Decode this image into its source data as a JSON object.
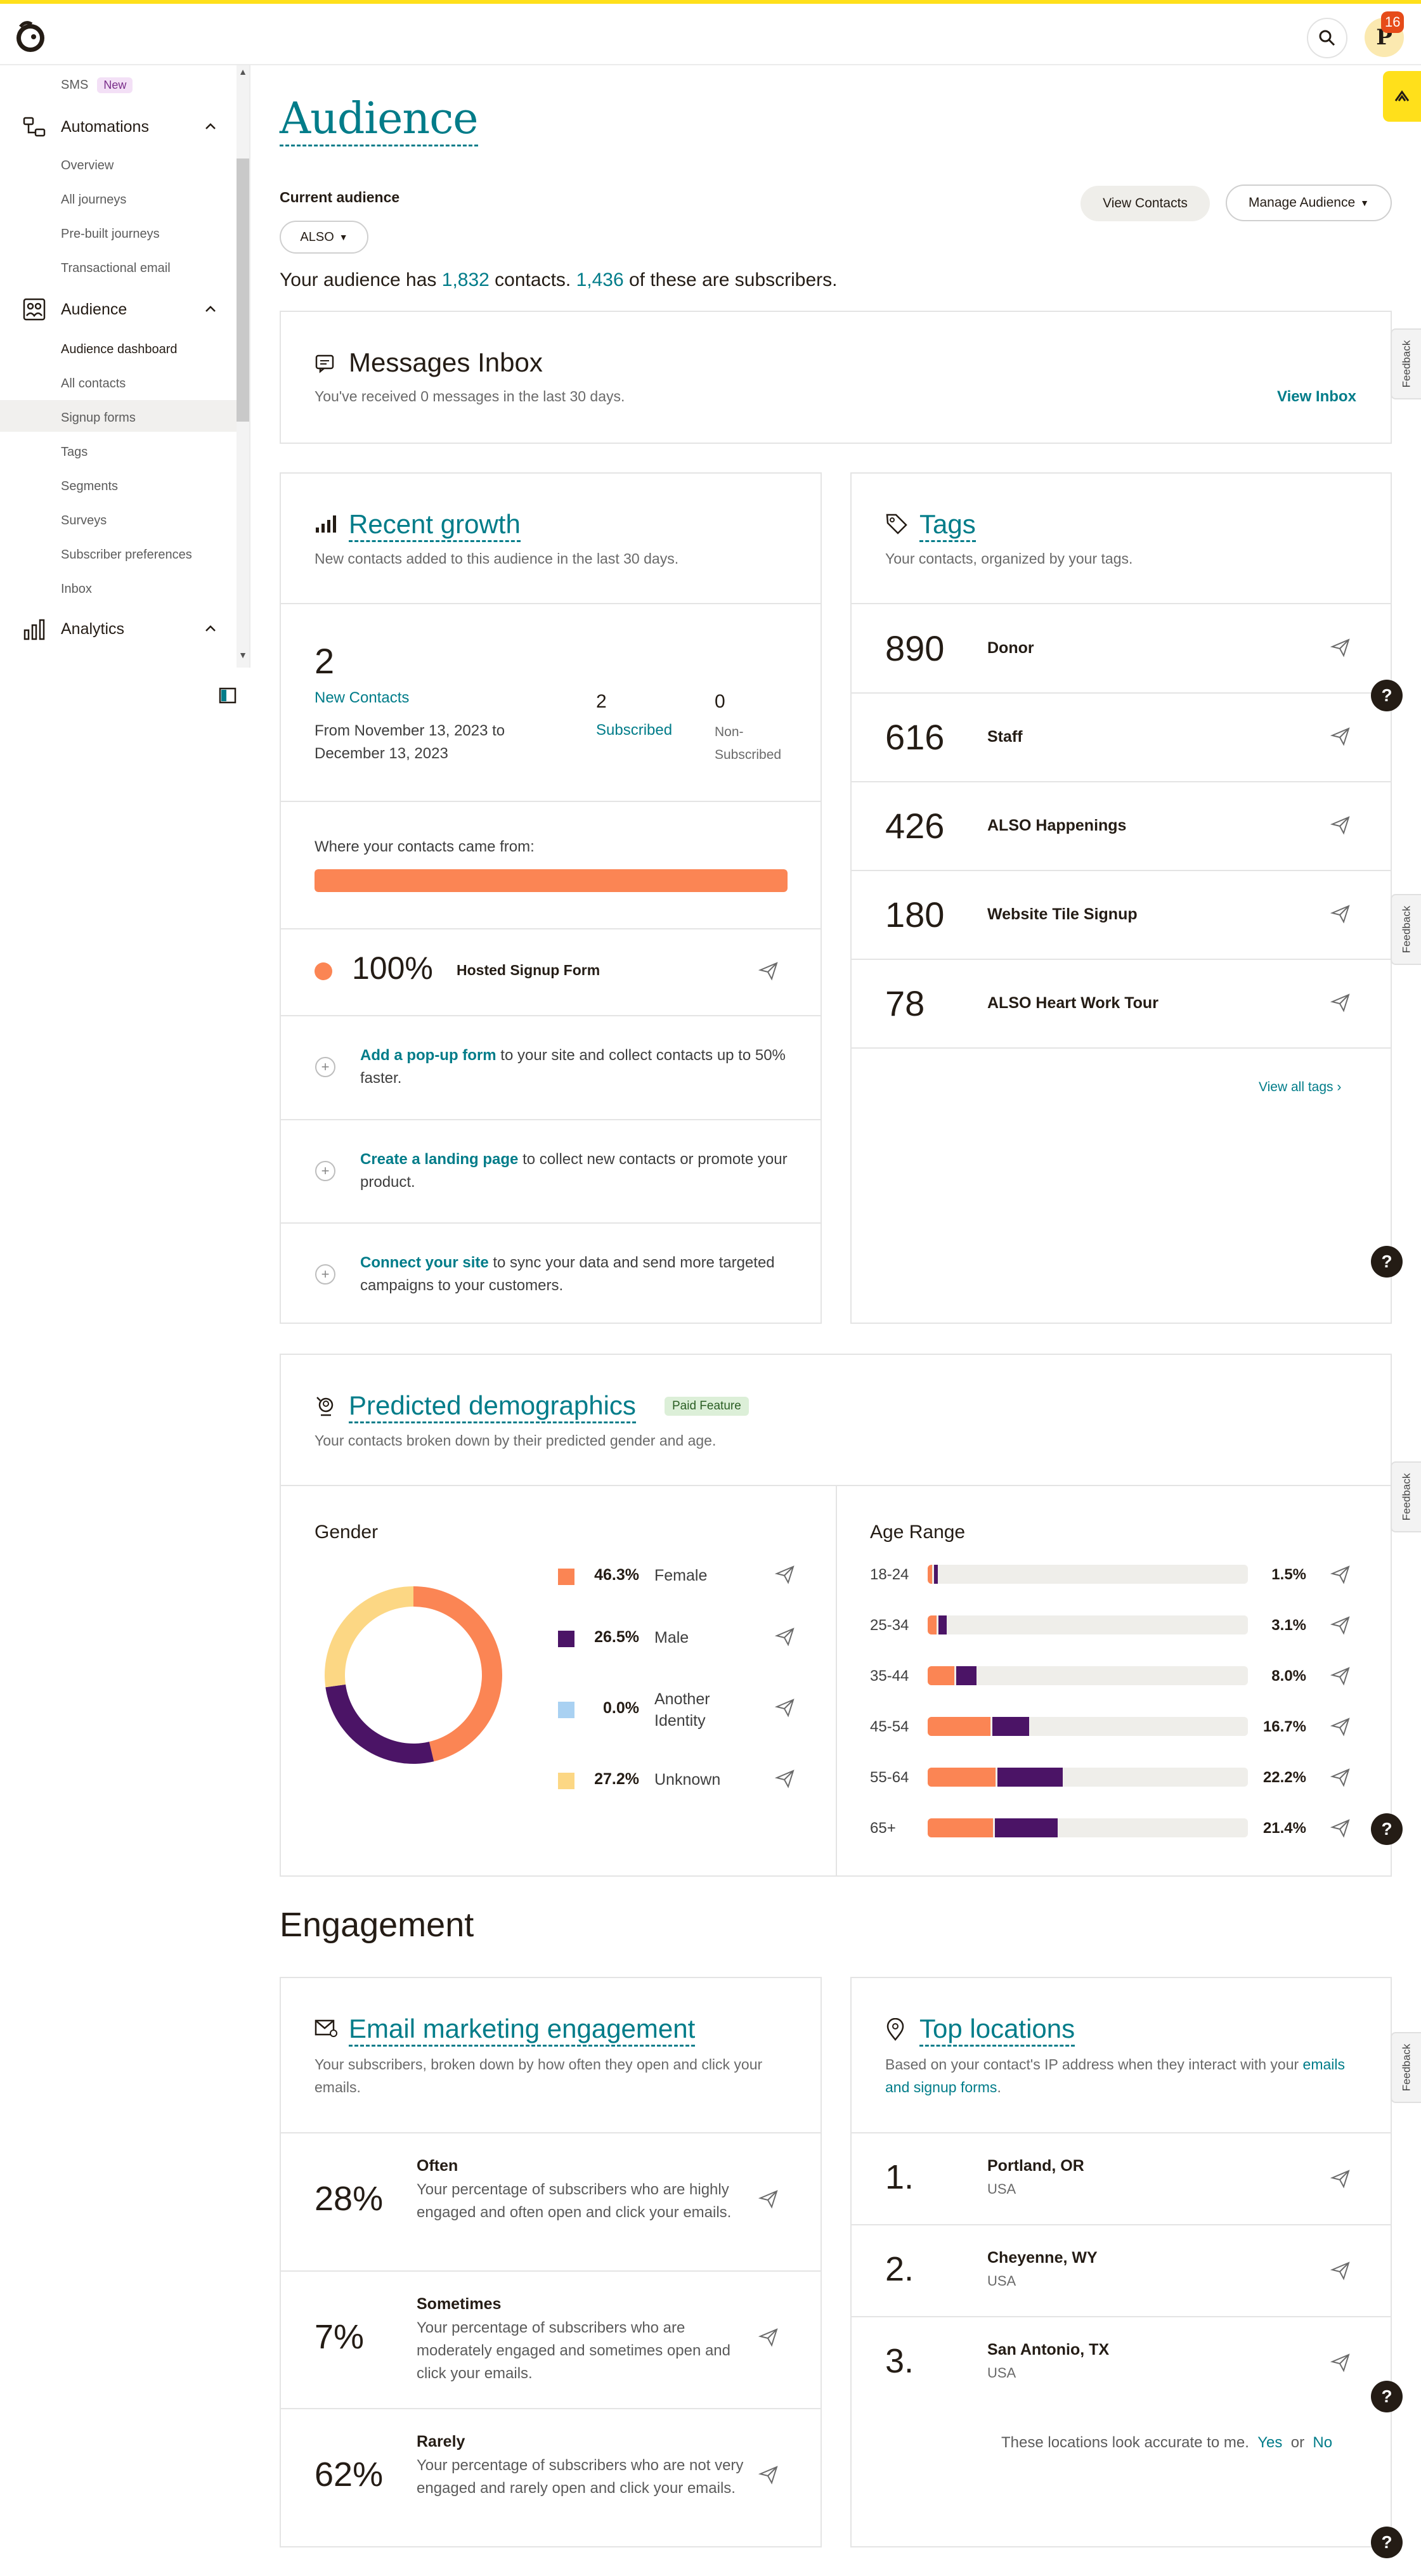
{
  "header": {
    "notification_count": "16",
    "avatar_letter": "P"
  },
  "sidebar": {
    "sms": {
      "label": "SMS",
      "badge": "New"
    },
    "automations": {
      "label": "Automations",
      "items": [
        "Overview",
        "All journeys",
        "Pre-built journeys",
        "Transactional email"
      ]
    },
    "audience": {
      "label": "Audience",
      "items": [
        "Audience dashboard",
        "All contacts",
        "Signup forms",
        "Tags",
        "Segments",
        "Surveys",
        "Subscriber preferences",
        "Inbox"
      ]
    },
    "analytics": {
      "label": "Analytics"
    }
  },
  "page": {
    "title": "Audience",
    "current_audience_label": "Current audience",
    "audience_selector": "ALSO",
    "summary": {
      "prefix": "Your audience has ",
      "contacts": "1,832",
      "middle": " contacts. ",
      "subscribers": "1,436",
      "suffix": " of these are subscribers."
    },
    "view_contacts": "View Contacts",
    "manage_audience": "Manage Audience"
  },
  "inbox": {
    "title": "Messages Inbox",
    "subtitle": "You've received 0 messages in the last 30 days.",
    "link": "View Inbox"
  },
  "growth": {
    "title": "Recent growth",
    "subtitle": "New contacts added to this audience in the last 30 days.",
    "new_count": "2",
    "new_label": "New Contacts",
    "range": "From November 13, 2023 to December 13, 2023",
    "subscribed_count": "2",
    "subscribed_label": "Subscribed",
    "non_count": "0",
    "non_label": "Non-Subscribed",
    "source_label": "Where your contacts came from:",
    "source_pct": "100%",
    "source_name": "Hosted Signup Form",
    "source_fraction": 1.0,
    "tips": [
      {
        "link": "Add a pop-up form",
        "text": " to your site and collect contacts up to 50% faster."
      },
      {
        "link": "Create a landing page",
        "text": " to collect new contacts or promote your product."
      },
      {
        "link": "Connect your site",
        "text": " to sync your data and send more targeted campaigns to your customers."
      }
    ]
  },
  "tags": {
    "title": "Tags",
    "subtitle": "Your contacts, organized by your tags.",
    "items": [
      {
        "count": "890",
        "name": "Donor"
      },
      {
        "count": "616",
        "name": "Staff"
      },
      {
        "count": "426",
        "name": "ALSO Happenings"
      },
      {
        "count": "180",
        "name": "Website Tile Signup"
      },
      {
        "count": "78",
        "name": "ALSO Heart Work Tour"
      }
    ],
    "view_all": "View all tags"
  },
  "demographics": {
    "title": "Predicted demographics",
    "badge": "Paid Feature",
    "subtitle": "Your contacts broken down by their predicted gender and age.",
    "gender_title": "Gender",
    "age_title": "Age Range"
  },
  "chart_data": [
    {
      "type": "pie",
      "title": "Gender",
      "categories": [
        "Female",
        "Male",
        "Another Identity",
        "Unknown"
      ],
      "values": [
        46.3,
        26.5,
        0.0,
        27.2
      ],
      "labels": [
        "46.3%",
        "26.5%",
        "0.0%",
        "27.2%"
      ],
      "colors": [
        "#fb8554",
        "#4b1466",
        "#a9d1f2",
        "#fcd784"
      ]
    },
    {
      "type": "bar",
      "title": "Age Range",
      "categories": [
        "18-24",
        "25-34",
        "35-44",
        "45-54",
        "55-64",
        "65+"
      ],
      "values": [
        1.5,
        3.1,
        8.0,
        16.7,
        22.2,
        21.4
      ],
      "labels": [
        "1.5%",
        "3.1%",
        "8.0%",
        "16.7%",
        "22.2%",
        "21.4%"
      ],
      "series_colors": [
        "#fb8554",
        "#4b1466"
      ],
      "female_fraction": [
        0.46,
        0.46,
        0.55,
        0.62,
        0.5,
        0.5
      ]
    }
  ],
  "engagement": {
    "title": "Engagement",
    "email": {
      "title": "Email marketing engagement",
      "subtitle": "Your subscribers, broken down by how often they open and click your emails.",
      "rows": [
        {
          "pct": "28%",
          "head": "Often",
          "desc": "Your percentage of subscribers who are highly engaged and often open and click your emails."
        },
        {
          "pct": "7%",
          "head": "Sometimes",
          "desc": "Your percentage of subscribers who are moderately engaged and sometimes open and click your emails."
        },
        {
          "pct": "62%",
          "head": "Rarely",
          "desc": "Your percentage of subscribers who are not very engaged and rarely open and click your emails."
        }
      ]
    },
    "locations": {
      "title": "Top locations",
      "subtitle_prefix": "Based on your contact's IP address when they interact with your ",
      "subtitle_link": "emails and signup forms",
      "subtitle_suffix": ".",
      "rows": [
        {
          "rank": "1.",
          "city": "Portland, OR",
          "country": "USA"
        },
        {
          "rank": "2.",
          "city": "Cheyenne, WY",
          "country": "USA"
        },
        {
          "rank": "3.",
          "city": "San Antonio, TX",
          "country": "USA"
        }
      ],
      "accurate_text": "These locations look accurate to me.",
      "yes": "Yes",
      "or": "or",
      "no": "No"
    }
  },
  "feedback_label": "Feedback",
  "help_label": "?"
}
